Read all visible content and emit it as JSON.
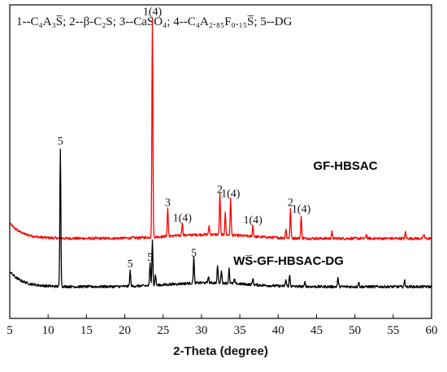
{
  "chart_data": {
    "type": "line",
    "title": "",
    "xlabel": "2-Theta (degree)",
    "ylabel": "",
    "xlim": [
      5,
      60
    ],
    "xticks": [
      5,
      10,
      15,
      20,
      25,
      30,
      35,
      40,
      45,
      50,
      55,
      60
    ],
    "tick_labels": [
      "5",
      "10",
      "15",
      "20",
      "25",
      "30",
      "35",
      "40",
      "45",
      "50",
      "55",
      "60"
    ],
    "legend": {
      "placement": "top-left",
      "items": [
        {
          "num": "1--",
          "formula": "C₄A₃S̅"
        },
        {
          "num": "2--",
          "formula": "β-C₂S"
        },
        {
          "num": "3--",
          "formula": "CaSO₄"
        },
        {
          "num": "4--",
          "formula": "C₄A₂.₈₅F₀.₁₅S̅"
        },
        {
          "num": "5--",
          "formula": "DG"
        }
      ]
    },
    "series": [
      {
        "name": "GF-HBSAC",
        "color": "#ff0000",
        "baseline": 0.22,
        "peaks": [
          {
            "x": 23.6,
            "h": 1.0,
            "label": "1(4)"
          },
          {
            "x": 25.6,
            "h": 0.13,
            "label": "3"
          },
          {
            "x": 27.5,
            "h": 0.06,
            "label": "1(4)"
          },
          {
            "x": 31.0,
            "h": 0.04
          },
          {
            "x": 32.4,
            "h": 0.19,
            "label": "2"
          },
          {
            "x": 33.1,
            "h": 0.1
          },
          {
            "x": 33.8,
            "h": 0.17,
            "label": "1(4)"
          },
          {
            "x": 36.7,
            "h": 0.05,
            "label": "1(4)"
          },
          {
            "x": 41.0,
            "h": 0.04
          },
          {
            "x": 41.6,
            "h": 0.13,
            "label": "2"
          },
          {
            "x": 43.0,
            "h": 0.1,
            "label": "1(4)"
          },
          {
            "x": 47.0,
            "h": 0.03
          },
          {
            "x": 51.5,
            "h": 0.02
          },
          {
            "x": 56.6,
            "h": 0.03
          },
          {
            "x": 59.0,
            "h": 0.02
          }
        ]
      },
      {
        "name": "WS̅-GF-HBSAC-DG",
        "color": "#000000",
        "baseline": 0.0,
        "peaks": [
          {
            "x": 11.6,
            "h": 0.63,
            "label": "5"
          },
          {
            "x": 20.7,
            "h": 0.07,
            "label": "5"
          },
          {
            "x": 23.3,
            "h": 0.1,
            "label": "5"
          },
          {
            "x": 23.6,
            "h": 0.21
          },
          {
            "x": 24.0,
            "h": 0.05
          },
          {
            "x": 29.0,
            "h": 0.12,
            "label": "5"
          },
          {
            "x": 30.9,
            "h": 0.03
          },
          {
            "x": 32.1,
            "h": 0.08
          },
          {
            "x": 32.6,
            "h": 0.06
          },
          {
            "x": 33.6,
            "h": 0.07
          },
          {
            "x": 34.3,
            "h": 0.02
          },
          {
            "x": 36.7,
            "h": 0.03
          },
          {
            "x": 41.0,
            "h": 0.03
          },
          {
            "x": 41.5,
            "h": 0.05
          },
          {
            "x": 43.5,
            "h": 0.02
          },
          {
            "x": 47.8,
            "h": 0.04
          },
          {
            "x": 50.5,
            "h": 0.02
          },
          {
            "x": 56.5,
            "h": 0.03
          }
        ]
      }
    ]
  }
}
